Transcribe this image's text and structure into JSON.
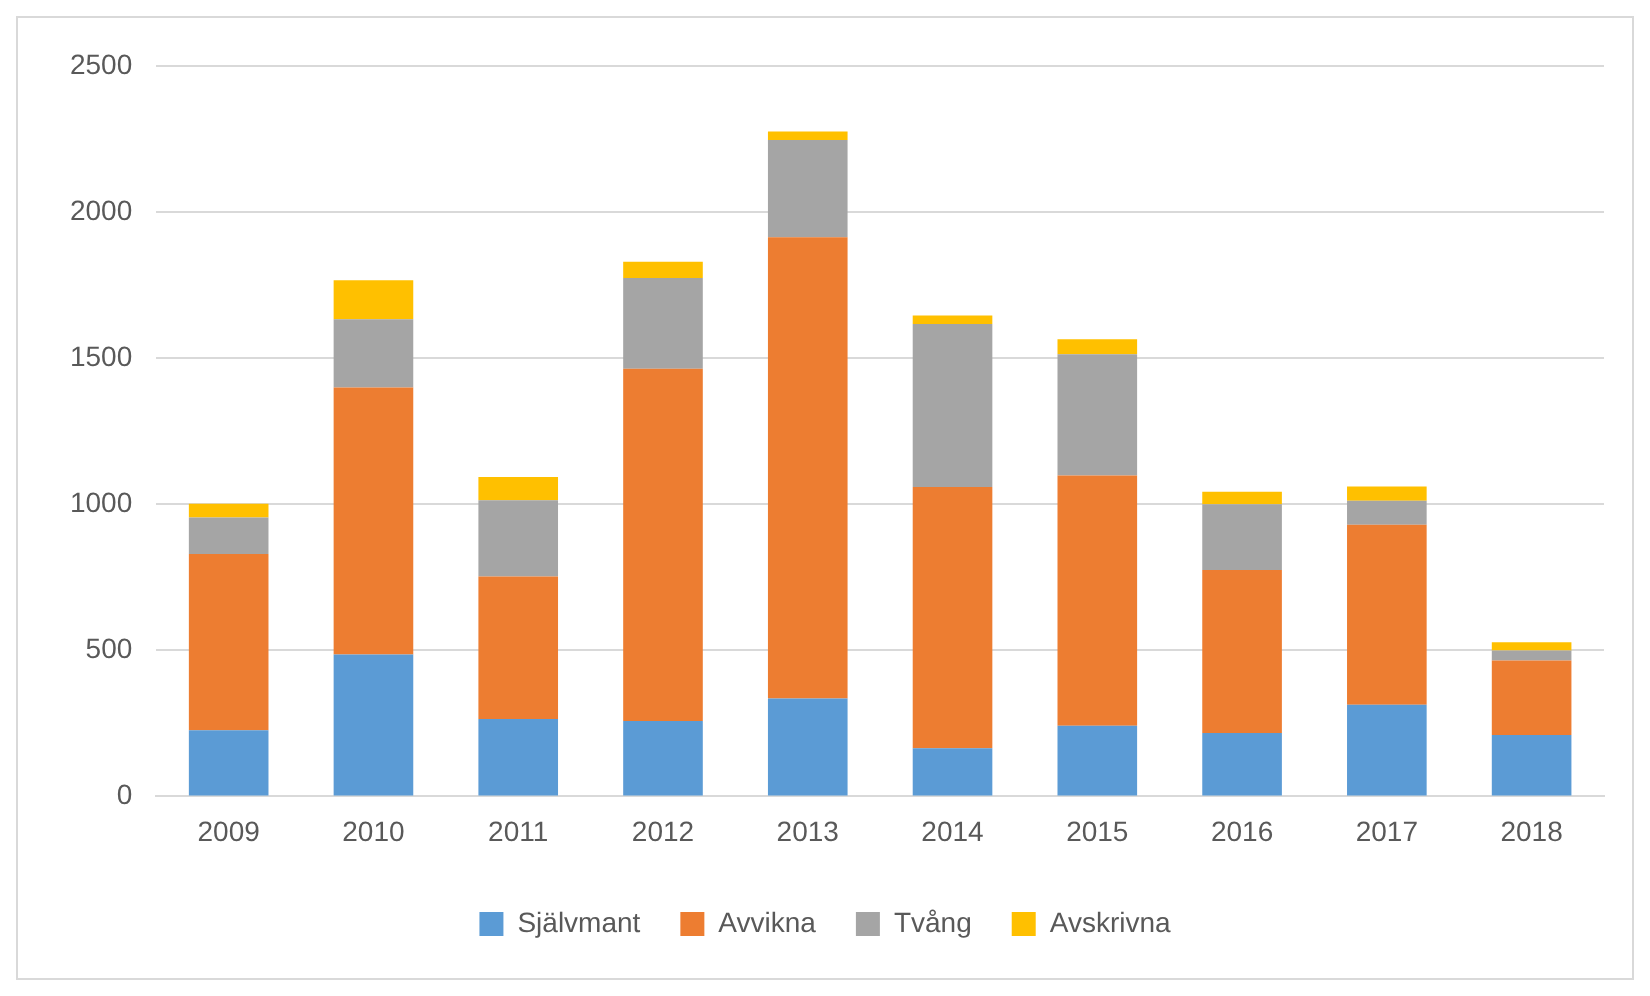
{
  "chart_data": {
    "type": "bar",
    "stacked": true,
    "categories": [
      "2009",
      "2010",
      "2011",
      "2012",
      "2013",
      "2014",
      "2015",
      "2016",
      "2017",
      "2018"
    ],
    "series": [
      {
        "name": "Självmant",
        "color": "#5b9bd5",
        "values": [
          226,
          486,
          265,
          258,
          335,
          165,
          242,
          217,
          314,
          210
        ]
      },
      {
        "name": "Avvikna",
        "color": "#ed7d31",
        "values": [
          604,
          914,
          488,
          1206,
          1579,
          894,
          856,
          558,
          616,
          255
        ]
      },
      {
        "name": "Tvång",
        "color": "#a5a5a5",
        "values": [
          125,
          233,
          261,
          310,
          333,
          558,
          415,
          225,
          82,
          34
        ]
      },
      {
        "name": "Avskrivna",
        "color": "#ffc000",
        "values": [
          47,
          134,
          79,
          56,
          29,
          29,
          52,
          43,
          49,
          29
        ]
      }
    ],
    "ylim": [
      0,
      2500
    ],
    "yticks": [
      0,
      500,
      1000,
      1500,
      2000,
      2500
    ],
    "grid": "y",
    "legend": "bottom"
  }
}
